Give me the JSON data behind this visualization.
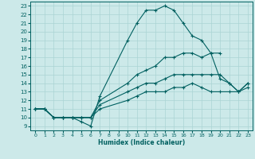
{
  "xlabel": "Humidex (Indice chaleur)",
  "bg_color": "#cce9e9",
  "grid_color": "#aad4d4",
  "line_color": "#006060",
  "xlim": [
    -0.5,
    23.5
  ],
  "ylim": [
    8.5,
    23.5
  ],
  "xticks": [
    0,
    1,
    2,
    3,
    4,
    5,
    6,
    7,
    8,
    9,
    10,
    11,
    12,
    13,
    14,
    15,
    16,
    17,
    18,
    19,
    20,
    21,
    22,
    23
  ],
  "yticks": [
    9,
    10,
    11,
    12,
    13,
    14,
    15,
    16,
    17,
    18,
    19,
    20,
    21,
    22,
    23
  ],
  "lines": [
    {
      "x": [
        0,
        1,
        2,
        3,
        4,
        5,
        6,
        7,
        10,
        11,
        12,
        13,
        14,
        15,
        16,
        17,
        18,
        19,
        20
      ],
      "y": [
        11,
        11,
        10,
        10,
        10,
        9.5,
        9,
        12.5,
        19,
        21,
        22.5,
        22.5,
        23,
        22.5,
        21,
        19.5,
        19,
        17.5,
        17.5
      ]
    },
    {
      "x": [
        0,
        1,
        2,
        3,
        4,
        5,
        6,
        7,
        10,
        11,
        12,
        13,
        14,
        15,
        16,
        17,
        18,
        19,
        20,
        21,
        22,
        23
      ],
      "y": [
        11,
        11,
        10,
        10,
        10,
        10,
        10,
        12,
        14,
        15,
        15.5,
        16,
        17,
        17,
        17.5,
        17.5,
        17,
        17.5,
        14.5,
        14,
        13,
        14
      ]
    },
    {
      "x": [
        0,
        1,
        2,
        3,
        4,
        5,
        6,
        7,
        10,
        11,
        12,
        13,
        14,
        15,
        16,
        17,
        18,
        19,
        20,
        21,
        22,
        23
      ],
      "y": [
        11,
        11,
        10,
        10,
        10,
        10,
        10,
        11.5,
        13,
        13.5,
        14,
        14,
        14.5,
        15,
        15,
        15,
        15,
        15,
        15,
        14,
        13,
        14
      ]
    },
    {
      "x": [
        0,
        1,
        2,
        3,
        4,
        5,
        6,
        7,
        10,
        11,
        12,
        13,
        14,
        15,
        16,
        17,
        18,
        19,
        20,
        21,
        22,
        23
      ],
      "y": [
        11,
        11,
        10,
        10,
        10,
        10,
        10,
        11,
        12,
        12.5,
        13,
        13,
        13,
        13.5,
        13.5,
        14,
        13.5,
        13,
        13,
        13,
        13,
        13.5
      ]
    }
  ]
}
